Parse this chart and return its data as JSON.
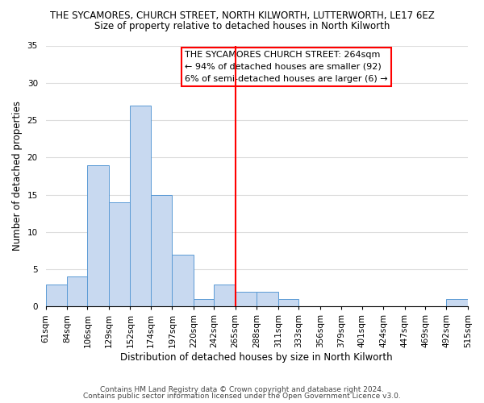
{
  "title": "THE SYCAMORES, CHURCH STREET, NORTH KILWORTH, LUTTERWORTH, LE17 6EZ",
  "subtitle": "Size of property relative to detached houses in North Kilworth",
  "xlabel": "Distribution of detached houses by size in North Kilworth",
  "ylabel": "Number of detached properties",
  "bin_edges": [
    61,
    84,
    106,
    129,
    152,
    174,
    197,
    220,
    242,
    265,
    288,
    311,
    333,
    356,
    379,
    401,
    424,
    447,
    469,
    492,
    515
  ],
  "counts": [
    3,
    4,
    19,
    14,
    27,
    15,
    7,
    1,
    3,
    2,
    2,
    1,
    0,
    0,
    0,
    0,
    0,
    0,
    0,
    1
  ],
  "bar_color": "#c8d9f0",
  "bar_edgecolor": "#5b9bd5",
  "reference_line_x": 265,
  "ylim": [
    0,
    35
  ],
  "yticks": [
    0,
    5,
    10,
    15,
    20,
    25,
    30,
    35
  ],
  "annotation_title": "THE SYCAMORES CHURCH STREET: 264sqm",
  "annotation_line1": "← 94% of detached houses are smaller (92)",
  "annotation_line2": "6% of semi-detached houses are larger (6) →",
  "footer_line1": "Contains HM Land Registry data © Crown copyright and database right 2024.",
  "footer_line2": "Contains public sector information licensed under the Open Government Licence v3.0.",
  "background_color": "#ffffff",
  "grid_color": "#dddddd",
  "title_fontsize": 8.5,
  "subtitle_fontsize": 8.5,
  "annotation_fontsize": 8.0,
  "xlabel_fontsize": 8.5,
  "ylabel_fontsize": 8.5,
  "tick_fontsize": 7.5,
  "footer_fontsize": 6.5
}
